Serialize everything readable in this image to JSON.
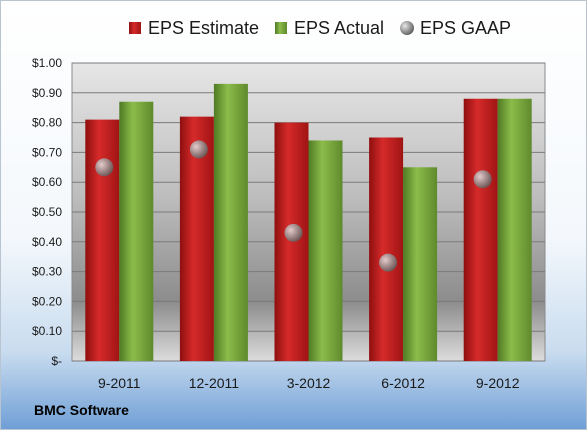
{
  "company": "BMC Software",
  "chart_data": {
    "type": "bar",
    "categories": [
      "9-2011",
      "12-2011",
      "3-2012",
      "6-2012",
      "9-2012"
    ],
    "series": [
      {
        "name": "EPS Estimate",
        "kind": "bar",
        "color": "#cc1f1f",
        "values": [
          0.81,
          0.82,
          0.8,
          0.75,
          0.88
        ]
      },
      {
        "name": "EPS Actual",
        "kind": "bar",
        "color": "#7aa63a",
        "values": [
          0.87,
          0.93,
          0.74,
          0.65,
          0.88
        ]
      },
      {
        "name": "EPS GAAP",
        "kind": "marker",
        "color": "#9a9a9a",
        "values": [
          0.65,
          0.71,
          0.43,
          0.33,
          0.61
        ]
      }
    ],
    "ylim": [
      0,
      1.0
    ],
    "yticks": [
      0,
      0.1,
      0.2,
      0.3,
      0.4,
      0.5,
      0.6,
      0.7,
      0.8,
      0.9,
      1.0
    ],
    "ytick_labels": [
      "$-",
      "$0.10",
      "$0.20",
      "$0.30",
      "$0.40",
      "$0.50",
      "$0.60",
      "$0.70",
      "$0.80",
      "$0.90",
      "$1.00"
    ],
    "grid": true,
    "legend_position": "top"
  }
}
